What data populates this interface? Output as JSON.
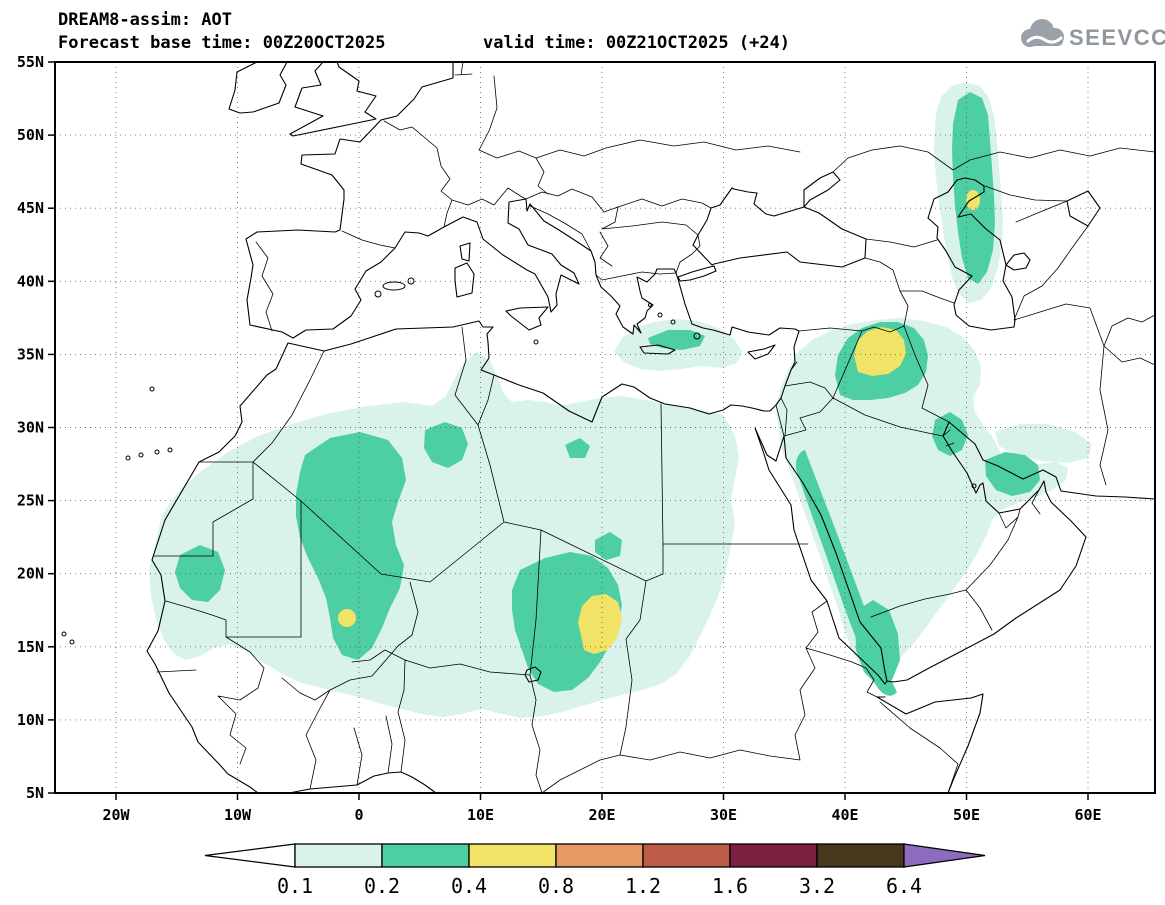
{
  "header": {
    "title": "DREAM8-assim: AOT",
    "base_time_label": "Forecast base time: 00Z20OCT2025",
    "valid_time_label": "valid time: 00Z21OCT2025 (+24)",
    "logo_text": "SEEVCCC"
  },
  "chart_data": {
    "type": "heatmap",
    "title": "DREAM8-assim: AOT",
    "model": "DREAM8-assim",
    "variable": "AOT (aerosol optical thickness)",
    "forecast_base_time": "00Z20OCT2025",
    "valid_time": "00Z21OCT2025",
    "lead_time_hours": "+24",
    "map_extent": {
      "lon": [
        "25W",
        "65E"
      ],
      "lat": [
        "5N",
        "55N"
      ]
    },
    "x_axis": {
      "ticks": [
        "20W",
        "10W",
        "0",
        "10E",
        "20E",
        "30E",
        "40E",
        "50E",
        "60E"
      ]
    },
    "y_axis": {
      "ticks": [
        "55N",
        "50N",
        "45N",
        "40N",
        "35N",
        "30N",
        "25N",
        "20N",
        "15N",
        "10N",
        "5N"
      ]
    },
    "grid": "dotted graticule, 10 deg lon x 5 deg lat",
    "colorbar": {
      "levels": [
        "0.1",
        "0.2",
        "0.4",
        "0.8",
        "1.2",
        "1.6",
        "3.2",
        "6.4"
      ],
      "segment_colors": [
        "#ffffff",
        "#d9f2ec",
        "#4ecfa3",
        "#f0e366",
        "#e79a63",
        "#bd5c47",
        "#7a2040",
        "#46391d",
        "#8d6cc0"
      ],
      "legend_position": "bottom"
    },
    "features": [
      {
        "region": "Sahara / Sahel background (Mauritania to Sudan)",
        "aot": "0.1-0.2"
      },
      {
        "region": "Mali / southern Algeria plume",
        "aot": "0.2-0.4",
        "peak": "0.4-0.8 spot near 1W,17N"
      },
      {
        "region": "Chad (Bodele) plume",
        "aot": "0.2-0.4",
        "peak": "0.4-0.8 core near 20E,15.5N"
      },
      {
        "region": "Iraq / Mesopotamia plume",
        "aot": "0.2-0.4",
        "peak": "0.4-0.8 core near 43E,34.5N"
      },
      {
        "region": "Caspian Sea corridor band",
        "aot": "0.1-0.4",
        "peak": "0.4-0.8 spot near 50E,45.5N"
      },
      {
        "region": "Red Sea and west Arabian coast band",
        "aot": "0.2-0.4"
      },
      {
        "region": "Persian Gulf (Qatar/UAE) and NW Gulf patches",
        "aot": "0.2-0.4"
      },
      {
        "region": "Arabian Peninsula interior",
        "aot": "0.1-0.2"
      },
      {
        "region": "Eastern Mediterranean south of Greece/Crete",
        "aot": "0.1-0.2 with 0.2-0.4 sliver"
      },
      {
        "region": "Tunisia / Strait of Sicily",
        "aot": "0.1-0.2"
      },
      {
        "region": "Southern Iran coast",
        "aot": "0.1-0.2"
      }
    ]
  }
}
